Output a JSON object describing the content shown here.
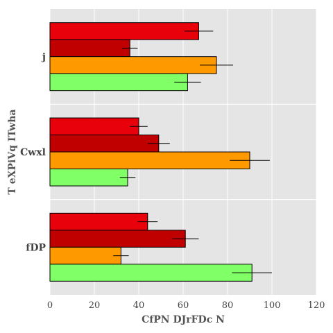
{
  "chart_data": {
    "type": "bar",
    "orientation": "horizontal",
    "categories": [
      "j",
      "Cwxl",
      "fDP"
    ],
    "series": [
      {
        "color": "#e8000b",
        "values": [
          67,
          40,
          44
        ],
        "errors": [
          6.5,
          4,
          4.5
        ]
      },
      {
        "color": "#c00000",
        "values": [
          36,
          49,
          61
        ],
        "errors": [
          3.5,
          5,
          6
        ]
      },
      {
        "color": "#ff9900",
        "values": [
          75,
          90,
          32
        ],
        "errors": [
          7.5,
          9,
          3.5
        ]
      },
      {
        "color": "#80ff66",
        "values": [
          62,
          35,
          91
        ],
        "errors": [
          6,
          3.5,
          9
        ]
      }
    ],
    "xlabel": "CfPN DJrFDc N",
    "ylabel": "T eXPiVq ITwha",
    "xlim": [
      0,
      120
    ],
    "xticks": [
      "0",
      "20",
      "40",
      "60",
      "80",
      "100",
      "120"
    ],
    "grid": true,
    "background": "#e5e5e5",
    "legend": "none"
  }
}
